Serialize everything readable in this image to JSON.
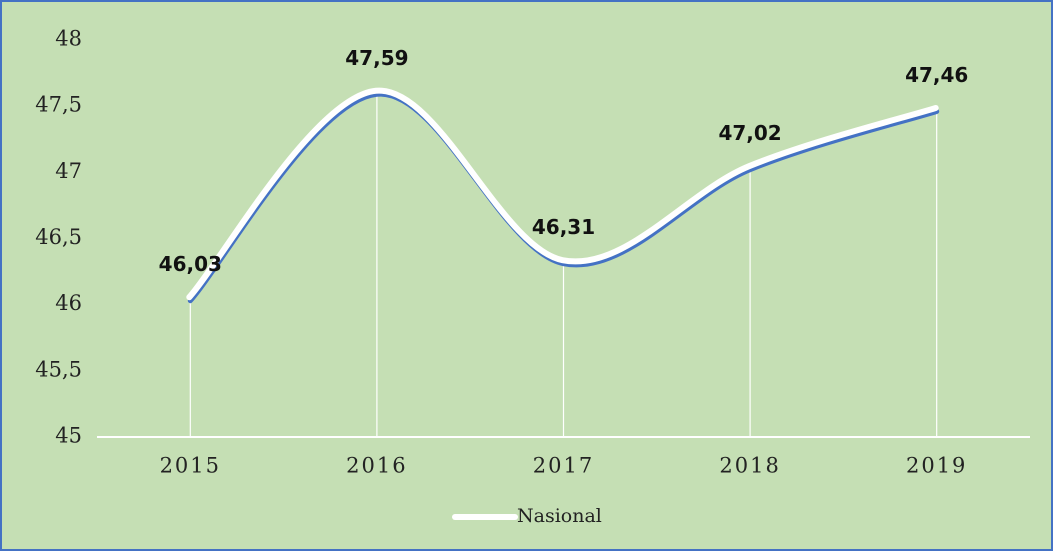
{
  "chart_data": {
    "type": "line",
    "categories": [
      "2015",
      "2016",
      "2017",
      "2018",
      "2019"
    ],
    "series": [
      {
        "name": "Nasional",
        "color": "#4472c4",
        "values": [
          46.03,
          47.59,
          46.31,
          47.02,
          47.46
        ],
        "value_labels": [
          "46,03",
          "47,59",
          "46,31",
          "47,02",
          "47,46"
        ]
      }
    ],
    "ylim": [
      45,
      48
    ],
    "yticks": [
      45,
      {
        "value": 45.5,
        "label": "45,5"
      },
      46,
      {
        "value": 46.5,
        "label": "46,5"
      },
      47,
      {
        "value": 47.5,
        "label": "47,5"
      },
      48
    ],
    "smooth": true,
    "legend": "bottom"
  }
}
